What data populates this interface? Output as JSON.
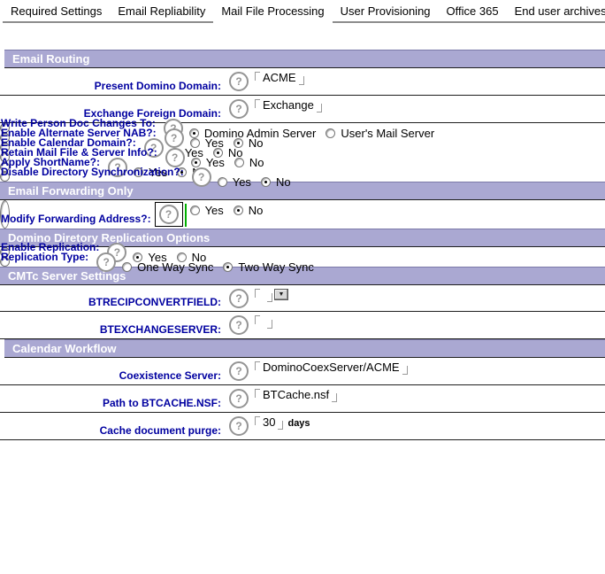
{
  "colors": {
    "header-bg": "#aaa8d2",
    "header-top": "#7b79a8",
    "label-color": "#0000a0",
    "line": "#1f1f1f",
    "caret": "#00b000",
    "tab-line": "#8c8c8c",
    "bracket": "#9a9a9a",
    "icon-gray": "#949494"
  },
  "icons": {
    "help_glyph": "?",
    "dropdown_glyph": "▼"
  },
  "tabs": {
    "items": [
      {
        "label": "Required Settings",
        "active": false
      },
      {
        "label": "Email Repliability",
        "active": false
      },
      {
        "label": "Mail File Processing",
        "active": true
      },
      {
        "label": "User Provisioning",
        "active": false
      },
      {
        "label": "Office 365",
        "active": false
      },
      {
        "label": "End user archives",
        "active": false
      }
    ]
  },
  "sections": [
    {
      "title": "Email Routing",
      "indent": true,
      "rows": [
        {
          "label": "Present Domino Domain:",
          "type": "text",
          "value": "ACME"
        },
        {
          "label": "Exchange Foreign Domain:",
          "type": "text",
          "value": "Exchange"
        },
        {
          "label": "Write Person Doc Changes To:",
          "type": "radio",
          "options": [
            {
              "label": "Domino Admin Server",
              "selected": true
            },
            {
              "label": "User's Mail Server",
              "selected": false
            }
          ]
        },
        {
          "label": "Enable Alternate Server NAB?:",
          "type": "radio",
          "options": [
            {
              "label": "Yes",
              "selected": false
            },
            {
              "label": "No",
              "selected": true
            }
          ]
        },
        {
          "label": "Enable Calendar Domain?:",
          "type": "radio",
          "options": [
            {
              "label": "Yes",
              "selected": false
            },
            {
              "label": "No",
              "selected": true
            }
          ]
        },
        {
          "label": "Retain Mail File & Server Info?:",
          "type": "radio",
          "options": [
            {
              "label": "Yes",
              "selected": true
            },
            {
              "label": "No",
              "selected": false
            }
          ]
        },
        {
          "label": "Apply ShortName?:",
          "type": "radio",
          "options": [
            {
              "label": "Yes",
              "selected": false
            },
            {
              "label": "No",
              "selected": true
            }
          ]
        },
        {
          "label": "Disable Directory Synchronization?:",
          "type": "radio",
          "options": [
            {
              "label": "Yes",
              "selected": false
            },
            {
              "label": "No",
              "selected": true
            }
          ]
        }
      ]
    },
    {
      "title": "Email Forwarding Only",
      "indent": false,
      "rows": [
        {
          "label": "Modify Forwarding Address?:",
          "type": "radio",
          "focused": true,
          "options": [
            {
              "label": "Yes",
              "selected": false
            },
            {
              "label": "No",
              "selected": true
            }
          ]
        }
      ]
    },
    {
      "title": "Domino Diretory Replication Options",
      "indent": false,
      "rows": [
        {
          "label": "Enable Replication:",
          "type": "radio",
          "options": [
            {
              "label": "Yes",
              "selected": true
            },
            {
              "label": "No",
              "selected": false
            }
          ]
        },
        {
          "label": "Replication Type:",
          "type": "radio",
          "options": [
            {
              "label": "One Way Sync",
              "selected": false
            },
            {
              "label": "Two Way Sync",
              "selected": true
            }
          ]
        }
      ]
    },
    {
      "title": "CMTc Server Settings",
      "indent": false,
      "rows": [
        {
          "label": "BTRECIPCONVERTFIELD:",
          "type": "combo",
          "value": ""
        },
        {
          "label": "BTEXCHANGESERVER:",
          "type": "text",
          "value": ""
        }
      ]
    },
    {
      "title": "Calendar Workflow",
      "indent": true,
      "rows": [
        {
          "label": "Coexistence Server:",
          "type": "text",
          "value": "DominoCoexServer/ACME"
        },
        {
          "label": "Path to BTCACHE.NSF:",
          "type": "text",
          "value": "BTCache.nsf"
        },
        {
          "label": "Cache document purge:",
          "type": "text",
          "value": "30",
          "suffix": "days"
        }
      ]
    }
  ]
}
